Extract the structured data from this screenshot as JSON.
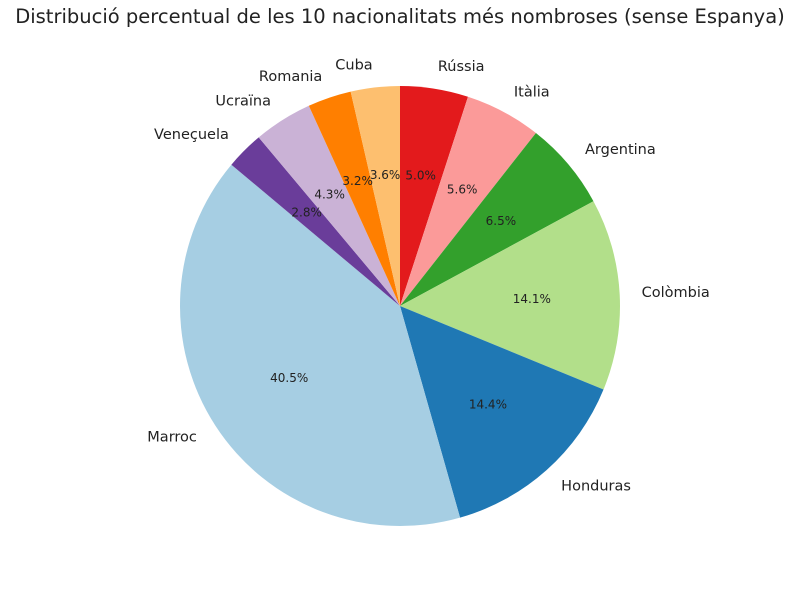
{
  "chart_data": {
    "type": "pie",
    "title": "Distribució percentual de les 10 nacionalitats més nombroses (sense Espanya)",
    "slices": [
      {
        "label": "Rússia",
        "value": 5.0,
        "pct_label": "5.0%",
        "color": "#e31a1c"
      },
      {
        "label": "Itàlia",
        "value": 5.6,
        "pct_label": "5.6%",
        "color": "#fb9a99"
      },
      {
        "label": "Argentina",
        "value": 6.5,
        "pct_label": "6.5%",
        "color": "#33a02c"
      },
      {
        "label": "Colòmbia",
        "value": 14.1,
        "pct_label": "14.1%",
        "color": "#b2df8a"
      },
      {
        "label": "Honduras",
        "value": 14.4,
        "pct_label": "14.4%",
        "color": "#1f78b4"
      },
      {
        "label": "Marroc",
        "value": 40.5,
        "pct_label": "40.5%",
        "color": "#a6cee3"
      },
      {
        "label": "Veneçuela",
        "value": 2.8,
        "pct_label": "2.8%",
        "color": "#6a3d9a"
      },
      {
        "label": "Ucraïna",
        "value": 4.3,
        "pct_label": "4.3%",
        "color": "#cab2d6"
      },
      {
        "label": "Romania",
        "value": 3.2,
        "pct_label": "3.2%",
        "color": "#ff7f00"
      },
      {
        "label": "Cuba",
        "value": 3.6,
        "pct_label": "3.6%",
        "color": "#fdbf6f"
      }
    ],
    "start": "top",
    "direction": "clockwise",
    "legend": "none"
  }
}
